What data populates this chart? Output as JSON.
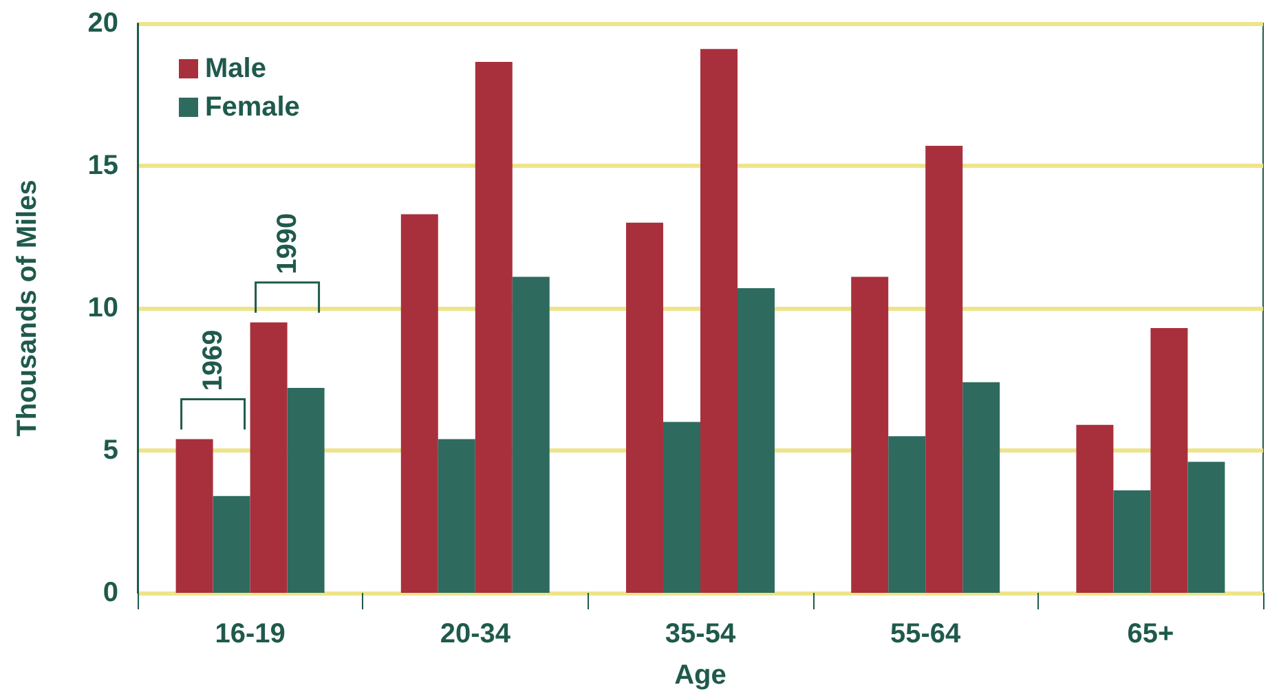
{
  "chart_data": {
    "type": "bar",
    "xlabel": "Age",
    "ylabel": "Thousands of Miles",
    "categories": [
      "16-19",
      "20-34",
      "35-54",
      "55-64",
      "65+"
    ],
    "series": [
      {
        "name": "Male",
        "color": "#a8303c",
        "values": [
          5.4,
          13.3,
          13.0,
          11.1,
          5.9
        ]
      },
      {
        "name": "Female",
        "color": "#2e6b5e",
        "values": [
          3.4,
          5.4,
          6.0,
          5.5,
          3.6
        ]
      },
      {
        "color": "#a8303c",
        "values": [
          9.5,
          18.65,
          19.1,
          15.7,
          9.3
        ]
      },
      {
        "color": "#2e6b5e",
        "values": [
          7.2,
          11.1,
          10.7,
          7.4,
          4.6
        ]
      }
    ],
    "annotations": [
      {
        "text": "1969",
        "x": "16-19",
        "y": 5.4
      },
      {
        "text": "1990",
        "x": "16-19",
        "y": 9.5
      }
    ],
    "ylim": [
      0,
      20
    ],
    "yticks": [
      0,
      5,
      10,
      15,
      20
    ],
    "grid": "y",
    "legend": "top left"
  }
}
